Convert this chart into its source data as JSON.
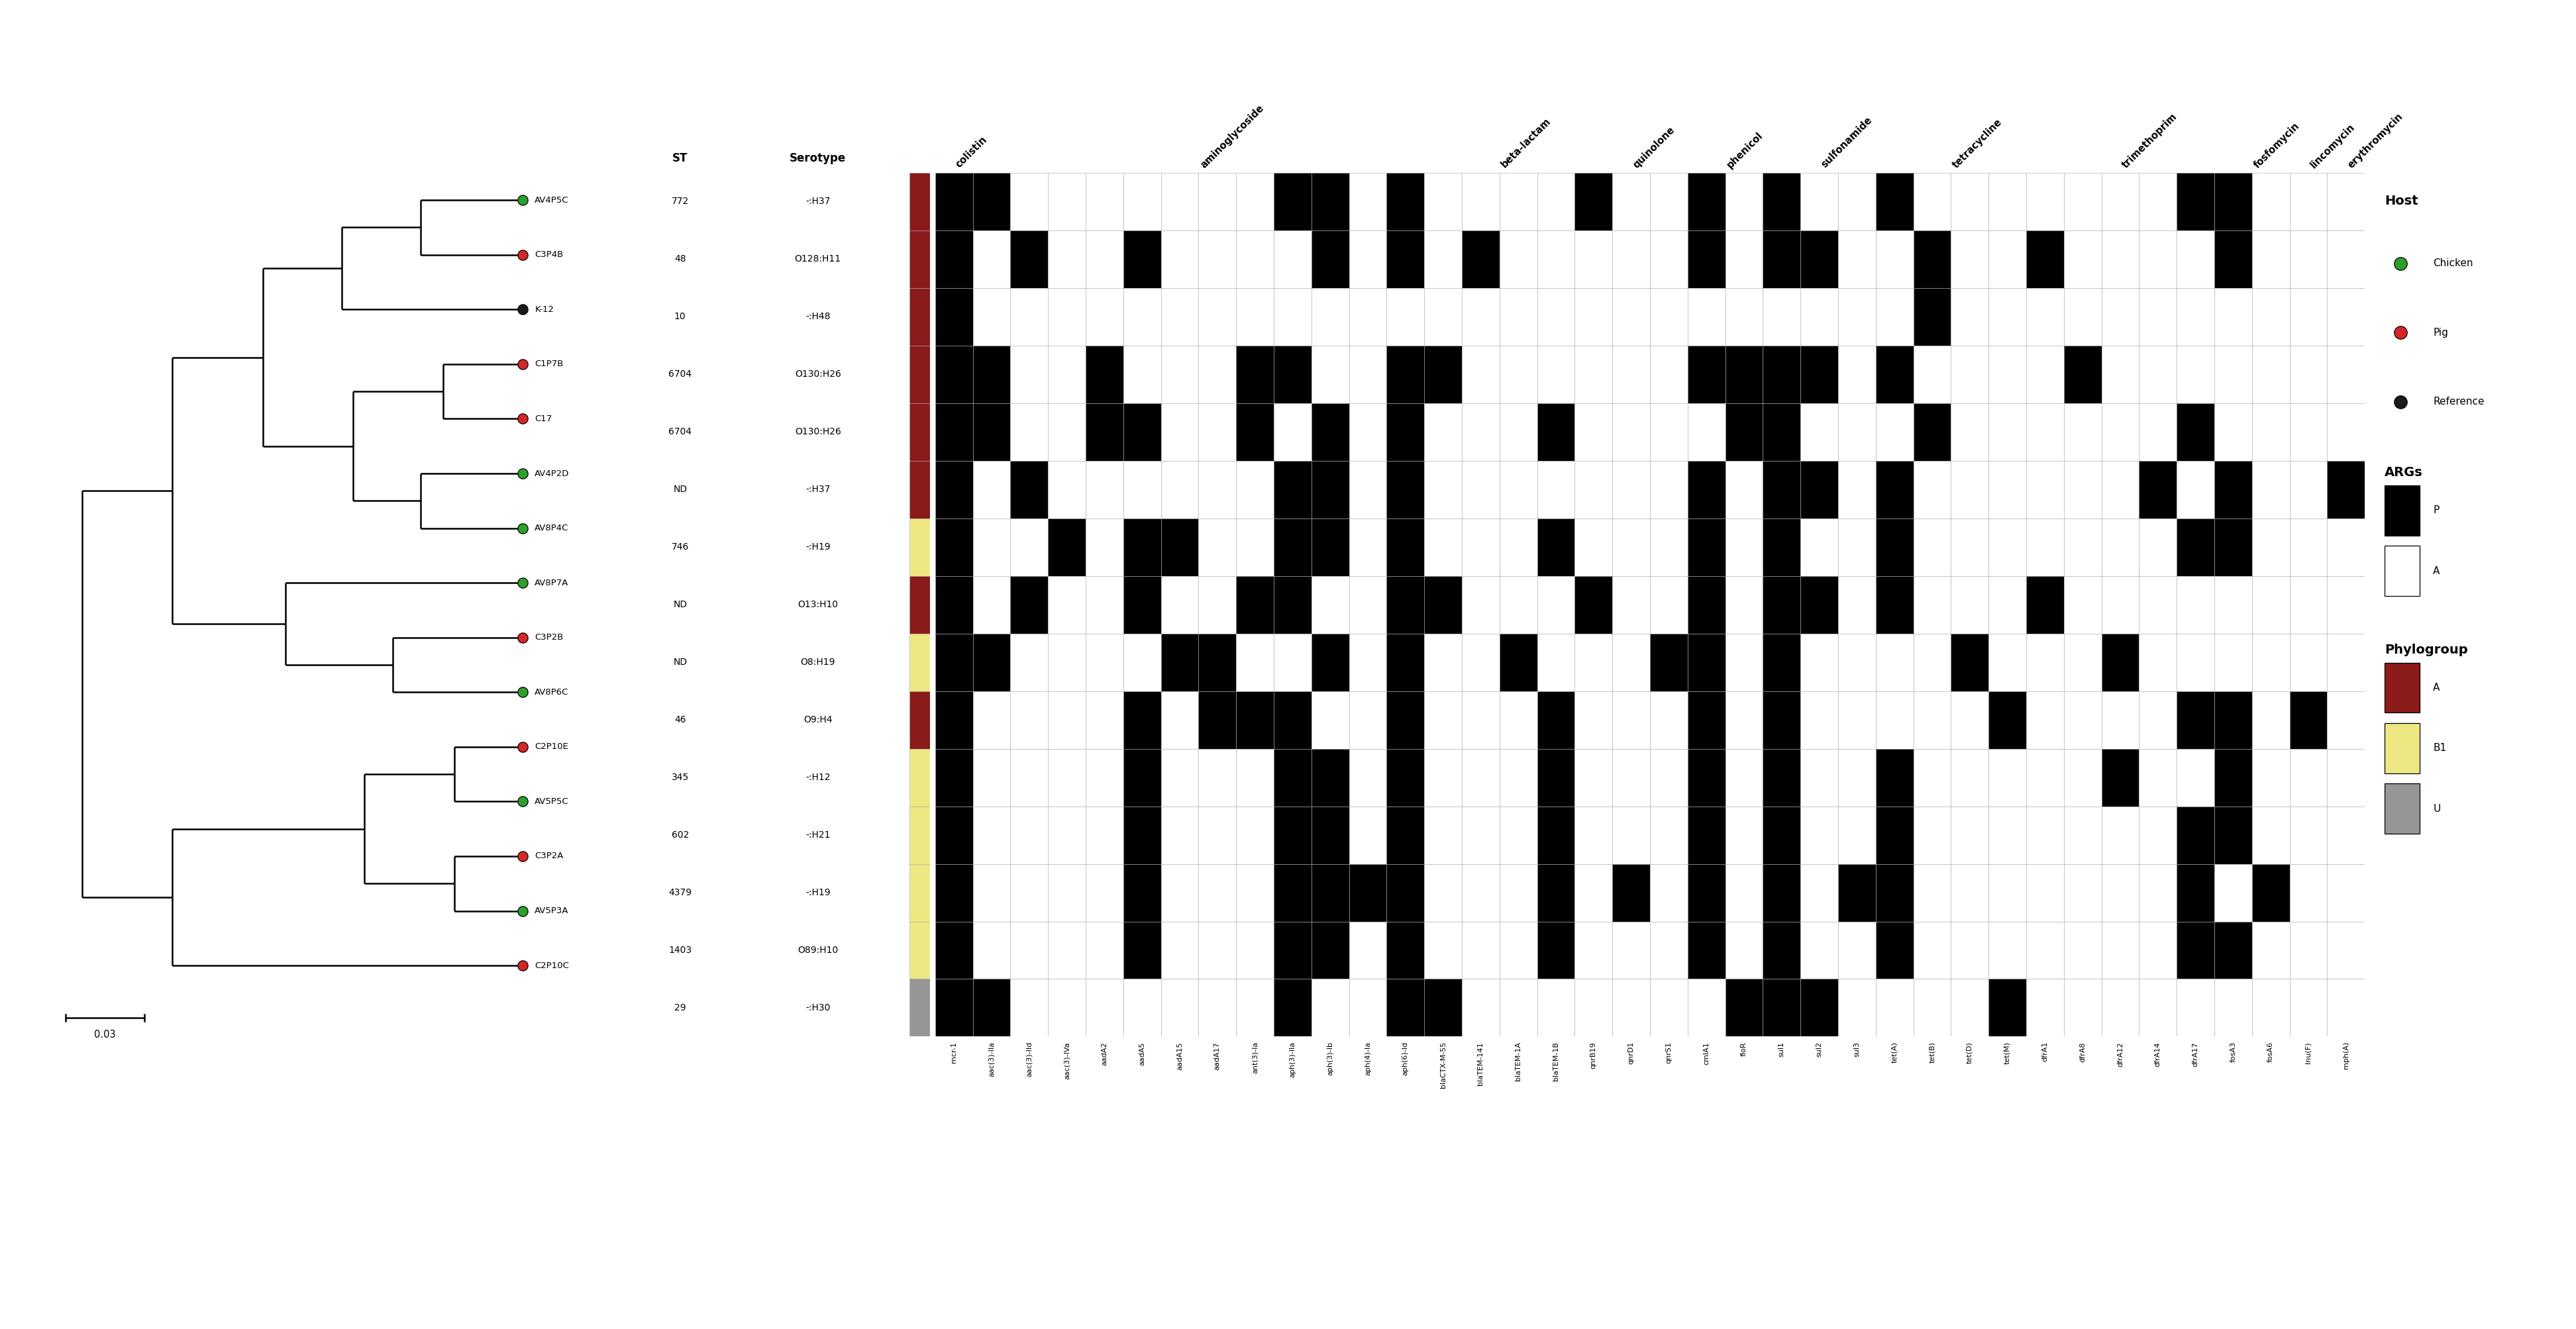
{
  "samples": [
    "AV4P5C",
    "C3P4B",
    "K-12",
    "C1P7B",
    "C17",
    "AV4P2D",
    "AV8P4C",
    "AV8P7A",
    "C3P2B",
    "AV8P6C",
    "C2P10E",
    "AV5P5C",
    "C3P2A",
    "AV5P3A",
    "C2P10C"
  ],
  "st": [
    "772",
    "48",
    "10",
    "6704",
    "6704",
    "ND",
    "746",
    "ND",
    "ND",
    "46",
    "345",
    "602",
    "4379",
    "1403",
    "29"
  ],
  "serotype": [
    "-:H37",
    "O128:H11",
    "-:H48",
    "O130:H26",
    "O130:H26",
    "-:H37",
    "-:H19",
    "O13:H10",
    "O8:H19",
    "O9:H4",
    "-:H12",
    "-:H21",
    "-:H19",
    "O89:H10",
    "-:H30"
  ],
  "host_colors": [
    "#2ca02c",
    "#d62728",
    "#1a1a1a",
    "#d62728",
    "#d62728",
    "#2ca02c",
    "#2ca02c",
    "#2ca02c",
    "#d62728",
    "#2ca02c",
    "#d62728",
    "#2ca02c",
    "#d62728",
    "#2ca02c",
    "#d62728"
  ],
  "phylogroup": [
    "A",
    "A",
    "A",
    "A",
    "A",
    "A",
    "B1",
    "A",
    "B1",
    "A",
    "B1",
    "B1",
    "B1",
    "B1",
    "U"
  ],
  "phylogroup_colors": {
    "A": "#8B1A1A",
    "B1": "#EDE882",
    "U": "#969696"
  },
  "drug_classes": [
    "colistin",
    "aminoglycoside",
    "beta-lactam",
    "quinolone",
    "phenicol",
    "sulfonamide",
    "tetracycline",
    "trimethoprim",
    "fosfomycin",
    "lincomycin",
    "erythromycin"
  ],
  "genes": [
    "mcr-1",
    "aac(3)-IIa",
    "aac(3)-IId",
    "aac(3)-IVa",
    "aadA2",
    "aadA5",
    "aadA15",
    "aadA17",
    "ant(3)-Ia",
    "aph(3)-IIa",
    "aph(3)-Ib",
    "aph(4)-Ia",
    "aph(6)-Id",
    "blaCTX-M-55",
    "blaTEM-141",
    "blaTEM-1A",
    "blaTEM-1B",
    "qnrB19",
    "qnrD1",
    "qnrS1",
    "cmlA1",
    "floR",
    "sul1",
    "sul2",
    "sul3",
    "tet(A)",
    "tet(B)",
    "tet(D)",
    "tet(M)",
    "dfrA1",
    "dfrA8",
    "dfrA12",
    "dfrA14",
    "dfrA17",
    "fosA3",
    "fosA6",
    "lnu(F)",
    "mph(A)"
  ],
  "gene_classes": [
    "colistin",
    "aminoglycoside",
    "aminoglycoside",
    "aminoglycoside",
    "aminoglycoside",
    "aminoglycoside",
    "aminoglycoside",
    "aminoglycoside",
    "aminoglycoside",
    "aminoglycoside",
    "aminoglycoside",
    "aminoglycoside",
    "aminoglycoside",
    "beta-lactam",
    "beta-lactam",
    "beta-lactam",
    "beta-lactam",
    "quinolone",
    "quinolone",
    "quinolone",
    "phenicol",
    "phenicol",
    "sulfonamide",
    "sulfonamide",
    "sulfonamide",
    "tetracycline",
    "tetracycline",
    "tetracycline",
    "tetracycline",
    "trimethoprim",
    "trimethoprim",
    "trimethoprim",
    "trimethoprim",
    "trimethoprim",
    "fosfomycin",
    "fosfomycin",
    "lincomycin",
    "erythromycin"
  ],
  "matrix": [
    [
      1,
      1,
      0,
      0,
      0,
      0,
      0,
      0,
      0,
      1,
      1,
      0,
      1,
      0,
      0,
      0,
      0,
      1,
      0,
      0,
      1,
      0,
      1,
      0,
      0,
      1,
      0,
      0,
      0,
      0,
      0,
      0,
      0,
      1,
      1,
      0,
      0,
      0
    ],
    [
      1,
      0,
      1,
      0,
      0,
      1,
      0,
      0,
      0,
      0,
      1,
      0,
      1,
      0,
      1,
      0,
      0,
      0,
      0,
      0,
      1,
      0,
      1,
      1,
      0,
      0,
      1,
      0,
      0,
      1,
      0,
      0,
      0,
      0,
      1,
      0,
      0,
      0
    ],
    [
      1,
      0,
      0,
      0,
      0,
      0,
      0,
      0,
      0,
      0,
      0,
      0,
      0,
      0,
      0,
      0,
      0,
      0,
      0,
      0,
      0,
      0,
      0,
      0,
      0,
      0,
      1,
      0,
      0,
      0,
      0,
      0,
      0,
      0,
      0,
      0,
      0,
      0
    ],
    [
      1,
      1,
      0,
      0,
      1,
      0,
      0,
      0,
      1,
      1,
      0,
      0,
      1,
      1,
      0,
      0,
      0,
      0,
      0,
      0,
      1,
      1,
      1,
      1,
      0,
      1,
      0,
      0,
      0,
      0,
      1,
      0,
      0,
      0,
      0,
      0,
      0,
      0
    ],
    [
      1,
      1,
      0,
      0,
      1,
      1,
      0,
      0,
      1,
      0,
      1,
      0,
      1,
      0,
      0,
      0,
      1,
      0,
      0,
      0,
      0,
      1,
      1,
      0,
      0,
      0,
      1,
      0,
      0,
      0,
      0,
      0,
      0,
      1,
      0,
      0,
      0,
      0
    ],
    [
      1,
      0,
      1,
      0,
      0,
      0,
      0,
      0,
      0,
      1,
      1,
      0,
      1,
      0,
      0,
      0,
      0,
      0,
      0,
      0,
      1,
      0,
      1,
      1,
      0,
      1,
      0,
      0,
      0,
      0,
      0,
      0,
      1,
      0,
      1,
      0,
      0,
      1
    ],
    [
      1,
      0,
      0,
      1,
      0,
      1,
      1,
      0,
      0,
      1,
      1,
      0,
      1,
      0,
      0,
      0,
      1,
      0,
      0,
      0,
      1,
      0,
      1,
      0,
      0,
      1,
      0,
      0,
      0,
      0,
      0,
      0,
      0,
      1,
      1,
      0,
      0,
      0
    ],
    [
      1,
      0,
      1,
      0,
      0,
      1,
      0,
      0,
      1,
      1,
      0,
      0,
      1,
      1,
      0,
      0,
      0,
      1,
      0,
      0,
      1,
      0,
      1,
      1,
      0,
      1,
      0,
      0,
      0,
      1,
      0,
      0,
      0,
      0,
      0,
      0,
      0,
      0
    ],
    [
      1,
      1,
      0,
      0,
      0,
      0,
      1,
      1,
      0,
      0,
      1,
      0,
      1,
      0,
      0,
      1,
      0,
      0,
      0,
      1,
      1,
      0,
      1,
      0,
      0,
      0,
      0,
      1,
      0,
      0,
      0,
      1,
      0,
      0,
      0,
      0,
      0,
      0
    ],
    [
      1,
      0,
      0,
      0,
      0,
      1,
      0,
      1,
      1,
      1,
      0,
      0,
      1,
      0,
      0,
      0,
      1,
      0,
      0,
      0,
      1,
      0,
      1,
      0,
      0,
      0,
      0,
      0,
      1,
      0,
      0,
      0,
      0,
      1,
      1,
      0,
      1,
      0
    ],
    [
      1,
      0,
      0,
      0,
      0,
      1,
      0,
      0,
      0,
      1,
      1,
      0,
      1,
      0,
      0,
      0,
      1,
      0,
      0,
      0,
      1,
      0,
      1,
      0,
      0,
      1,
      0,
      0,
      0,
      0,
      0,
      1,
      0,
      0,
      1,
      0,
      0,
      0
    ],
    [
      1,
      0,
      0,
      0,
      0,
      1,
      0,
      0,
      0,
      1,
      1,
      0,
      1,
      0,
      0,
      0,
      1,
      0,
      0,
      0,
      1,
      0,
      1,
      0,
      0,
      1,
      0,
      0,
      0,
      0,
      0,
      0,
      0,
      1,
      1,
      0,
      0,
      0
    ],
    [
      1,
      0,
      0,
      0,
      0,
      1,
      0,
      0,
      0,
      1,
      1,
      1,
      1,
      0,
      0,
      0,
      1,
      0,
      1,
      0,
      1,
      0,
      1,
      0,
      1,
      1,
      0,
      0,
      0,
      0,
      0,
      0,
      0,
      1,
      0,
      1,
      0,
      0
    ],
    [
      1,
      0,
      0,
      0,
      0,
      1,
      0,
      0,
      0,
      1,
      1,
      0,
      1,
      0,
      0,
      0,
      1,
      0,
      0,
      0,
      1,
      0,
      1,
      0,
      0,
      1,
      0,
      0,
      0,
      0,
      0,
      0,
      0,
      1,
      1,
      0,
      0,
      0
    ],
    [
      1,
      1,
      0,
      0,
      0,
      0,
      0,
      0,
      0,
      1,
      0,
      0,
      1,
      1,
      0,
      0,
      0,
      0,
      0,
      0,
      0,
      1,
      1,
      1,
      0,
      0,
      0,
      0,
      1,
      0,
      0,
      0,
      0,
      0,
      0,
      0,
      0,
      0
    ]
  ],
  "class_label_offsets": {
    "colistin": 0,
    "aminoglycoside": 0,
    "beta-lactam": 0,
    "quinolone": 0,
    "phenicol": 0,
    "sulfonamide": 0,
    "tetracycline": 0,
    "trimethoprim": 0,
    "fosfomycin": 0,
    "lincomycin": 0,
    "erythromycin": 0
  }
}
